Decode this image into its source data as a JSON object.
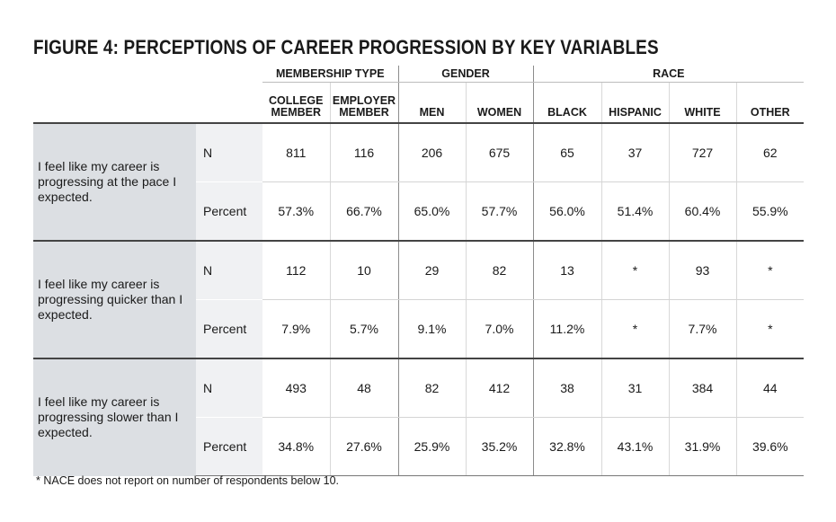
{
  "title": "FIGURE 4: PERCEPTIONS OF CAREER PROGRESSION BY KEY VARIABLES",
  "groups": {
    "membership": "MEMBERSHIP TYPE",
    "gender": "GENDER",
    "race": "RACE"
  },
  "columns": {
    "college_l1": "COLLEGE",
    "college_l2": "MEMBER",
    "employer_l1": "EMPLOYER",
    "employer_l2": "MEMBER",
    "men": "MEN",
    "women": "WOMEN",
    "black": "BLACK",
    "hispanic": "HISPANIC",
    "white": "WHITE",
    "other": "OTHER"
  },
  "stat_labels": {
    "n": "N",
    "percent": "Percent"
  },
  "rows": [
    {
      "statement": "I feel like my career is progressing at the pace I expected.",
      "n": [
        "811",
        "116",
        "206",
        "675",
        "65",
        "37",
        "727",
        "62"
      ],
      "percent": [
        "57.3%",
        "66.7%",
        "65.0%",
        "57.7%",
        "56.0%",
        "51.4%",
        "60.4%",
        "55.9%"
      ]
    },
    {
      "statement": "I feel like my career is progressing quicker than I expected.",
      "n": [
        "112",
        "10",
        "29",
        "82",
        "13",
        "*",
        "93",
        "*"
      ],
      "percent": [
        "7.9%",
        "5.7%",
        "9.1%",
        "7.0%",
        "11.2%",
        "*",
        "7.7%",
        "*"
      ]
    },
    {
      "statement": "I feel like my career is progressing slower than I expected.",
      "n": [
        "493",
        "48",
        "82",
        "412",
        "38",
        "31",
        "384",
        "44"
      ],
      "percent": [
        "34.8%",
        "27.6%",
        "25.9%",
        "35.2%",
        "32.8%",
        "43.1%",
        "31.9%",
        "39.6%"
      ]
    }
  ],
  "footnote": "* NACE does not report on number of respondents below 10.",
  "chart_data": {
    "type": "table",
    "title": "FIGURE 4: PERCEPTIONS OF CAREER PROGRESSION BY KEY VARIABLES",
    "column_groups": [
      {
        "name": "MEMBERSHIP TYPE",
        "columns": [
          "COLLEGE MEMBER",
          "EMPLOYER MEMBER"
        ]
      },
      {
        "name": "GENDER",
        "columns": [
          "MEN",
          "WOMEN"
        ]
      },
      {
        "name": "RACE",
        "columns": [
          "BLACK",
          "HISPANIC",
          "WHITE",
          "OTHER"
        ]
      }
    ],
    "rows": [
      {
        "statement": "I feel like my career is progressing at the pace I expected.",
        "stat": "N",
        "values": [
          811,
          116,
          206,
          675,
          65,
          37,
          727,
          62
        ]
      },
      {
        "statement": "I feel like my career is progressing at the pace I expected.",
        "stat": "Percent",
        "values": [
          57.3,
          66.7,
          65.0,
          57.7,
          56.0,
          51.4,
          60.4,
          55.9
        ]
      },
      {
        "statement": "I feel like my career is progressing quicker than I expected.",
        "stat": "N",
        "values": [
          112,
          10,
          29,
          82,
          13,
          null,
          93,
          null
        ]
      },
      {
        "statement": "I feel like my career is progressing quicker than I expected.",
        "stat": "Percent",
        "values": [
          7.9,
          5.7,
          9.1,
          7.0,
          11.2,
          null,
          7.7,
          null
        ]
      },
      {
        "statement": "I feel like my career is progressing slower than I expected.",
        "stat": "N",
        "values": [
          493,
          48,
          82,
          412,
          38,
          31,
          384,
          44
        ]
      },
      {
        "statement": "I feel like my career is progressing slower than I expected.",
        "stat": "Percent",
        "values": [
          34.8,
          27.6,
          25.9,
          35.2,
          32.8,
          43.1,
          31.9,
          39.6
        ]
      }
    ]
  }
}
